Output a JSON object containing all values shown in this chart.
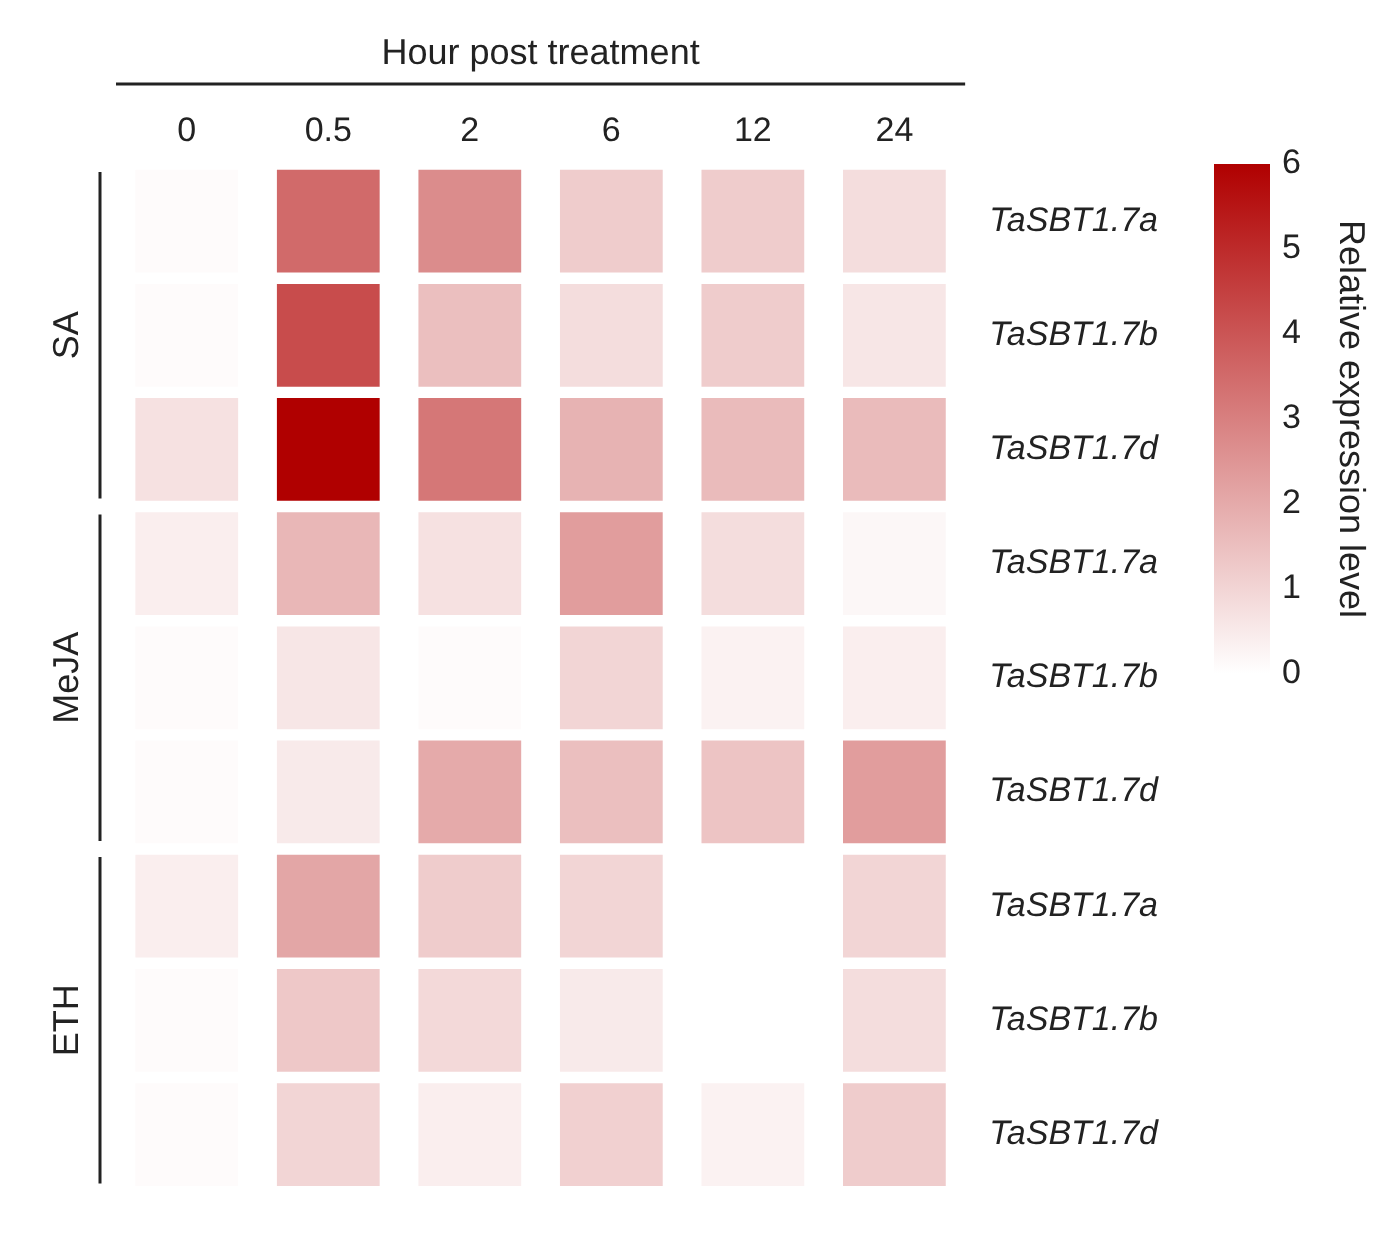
{
  "chart_data": {
    "type": "heatmap",
    "xlabel": "Hour post treatment",
    "categories": [
      "0",
      "0.5",
      "2",
      "6",
      "12",
      "24"
    ],
    "y_categories": [
      "TaSBT1.7a",
      "TaSBT1.7b",
      "TaSBT1.7d",
      "TaSBT1.7a",
      "TaSBT1.7b",
      "TaSBT1.7d",
      "TaSBT1.7a",
      "TaSBT1.7b",
      "TaSBT1.7d"
    ],
    "cells": [
      [
        0.1,
        3.5,
        2.7,
        1.2,
        1.2,
        0.8
      ],
      [
        0.1,
        4.2,
        1.5,
        0.8,
        1.2,
        0.6
      ],
      [
        0.7,
        6,
        3.2,
        1.8,
        1.6,
        1.6
      ],
      [
        0.4,
        1.7,
        0.7,
        2.3,
        0.8,
        0.2
      ],
      [
        0.1,
        0.6,
        0.1,
        1.0,
        0.3,
        0.4
      ],
      [
        0.1,
        0.5,
        2.0,
        1.5,
        1.4,
        2.3
      ],
      [
        0.4,
        2.1,
        1.2,
        1.0,
        null,
        1.0
      ],
      [
        0.1,
        1.3,
        0.9,
        0.5,
        null,
        0.8
      ],
      [
        0.1,
        1.0,
        0.4,
        1.1,
        0.3,
        1.2
      ]
    ],
    "clabel": "Relative expression level",
    "clim": [
      0,
      6
    ],
    "cticks": [
      0,
      1,
      2,
      3,
      4,
      5,
      6
    ],
    "annotations": [
      "SA",
      "MeJA",
      "ETH"
    ],
    "grid": false,
    "legend": false
  }
}
